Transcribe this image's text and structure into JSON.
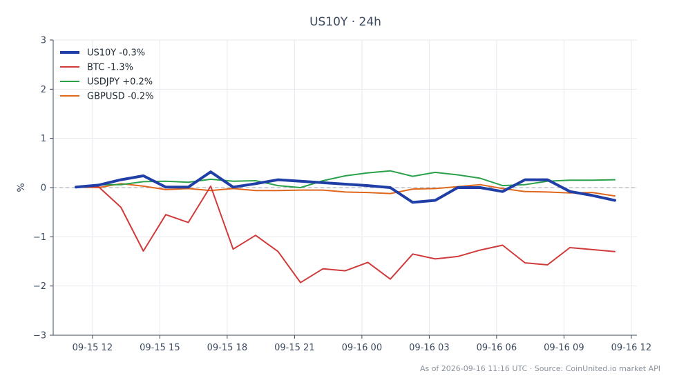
{
  "chart_data": {
    "type": "line",
    "title": "US10Y · 24h",
    "xlabel": "",
    "ylabel": "%",
    "ylim": [
      -3,
      3
    ],
    "yticks": [
      3,
      2,
      1,
      0,
      -1,
      -2,
      -3
    ],
    "ytick_labels": [
      "3",
      "2",
      "1",
      "0",
      "−1",
      "−2",
      "−3"
    ],
    "xlim": [
      "09-15 10:15",
      "09-16 12:15"
    ],
    "xticks": [
      "09-15 12:00",
      "09-15 15:00",
      "09-15 18:00",
      "09-15 21:00",
      "09-16 00:00",
      "09-16 03:00",
      "09-16 06:00",
      "09-16 09:00",
      "09-16 12:00"
    ],
    "xtick_labels": [
      "09-15 12",
      "09-15 15",
      "09-15 18",
      "09-15 21",
      "09-16 00",
      "09-16 03",
      "09-16 06",
      "09-16 09",
      "09-16 12"
    ],
    "grid": true,
    "legend_position": "top-left",
    "zero_line": true,
    "x": [
      "09-15 11:16",
      "09-15 12:16",
      "09-15 13:16",
      "09-15 14:16",
      "09-15 15:16",
      "09-15 16:16",
      "09-15 17:16",
      "09-15 18:16",
      "09-15 19:16",
      "09-15 20:16",
      "09-15 21:16",
      "09-15 22:16",
      "09-15 23:16",
      "09-16 00:16",
      "09-16 01:16",
      "09-16 02:16",
      "09-16 03:16",
      "09-16 04:16",
      "09-16 05:16",
      "09-16 06:16",
      "09-16 07:16",
      "09-16 08:16",
      "09-16 09:16",
      "09-16 10:16",
      "09-16 11:16"
    ],
    "series": [
      {
        "name": "US10Y -0.3%",
        "color": "#1f3fa6",
        "width": 4,
        "values": [
          0.01,
          0.05,
          0.16,
          0.24,
          0.01,
          0.01,
          0.32,
          0.01,
          0.08,
          0.16,
          0.13,
          0.1,
          0.07,
          0.04,
          0.0,
          -0.3,
          -0.26,
          0.0,
          0.0,
          -0.08,
          0.16,
          0.16,
          -0.08,
          -0.16,
          -0.26
        ]
      },
      {
        "name": "BTC -1.3%",
        "color": "#d03a3a",
        "width": 2,
        "values": [
          0.01,
          0.02,
          -0.4,
          -1.29,
          -0.55,
          -0.71,
          0.03,
          -1.25,
          -0.97,
          -1.3,
          -1.93,
          -1.65,
          -1.69,
          -1.52,
          -1.86,
          -1.35,
          -1.45,
          -1.4,
          -1.27,
          -1.17,
          -1.53,
          -1.57,
          -1.22,
          -1.26,
          -1.3
        ]
      },
      {
        "name": "USDJPY +0.2%",
        "color": "#2aa04a",
        "width": 2,
        "values": [
          0.02,
          0.06,
          0.06,
          0.12,
          0.13,
          0.11,
          0.17,
          0.13,
          0.14,
          0.04,
          0.0,
          0.14,
          0.24,
          0.3,
          0.34,
          0.23,
          0.31,
          0.26,
          0.19,
          0.04,
          0.06,
          0.13,
          0.15,
          0.15,
          0.16
        ]
      },
      {
        "name": "GBPUSD -0.2%",
        "color": "#e0661c",
        "width": 2,
        "values": [
          0.01,
          0.0,
          0.08,
          0.03,
          -0.04,
          -0.02,
          -0.06,
          -0.02,
          -0.06,
          -0.06,
          -0.05,
          -0.05,
          -0.09,
          -0.1,
          -0.12,
          -0.03,
          -0.02,
          0.02,
          0.06,
          -0.02,
          -0.08,
          -0.09,
          -0.11,
          -0.1,
          -0.17
        ]
      }
    ],
    "footer": "As of 2026-09-16 11:16 UTC · Source: CoinUnited.io market API"
  }
}
